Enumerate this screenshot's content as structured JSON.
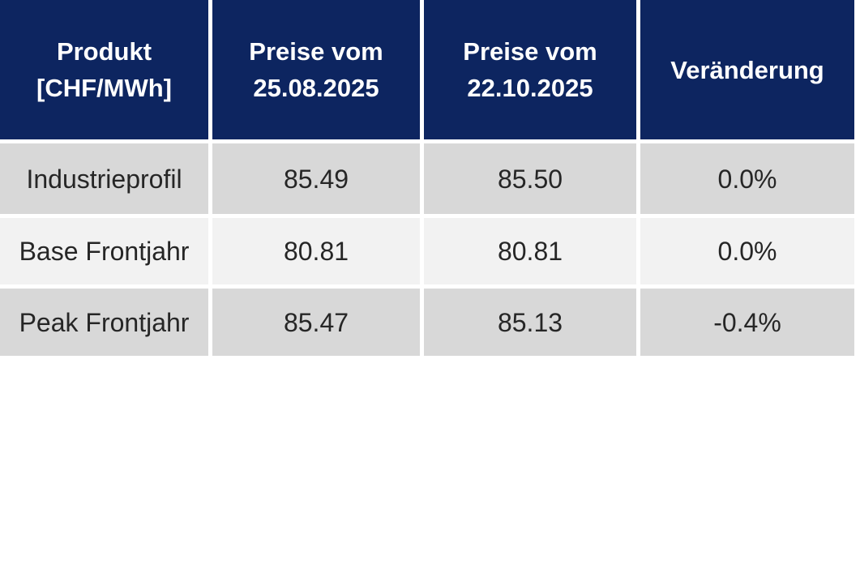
{
  "table": {
    "headers": [
      {
        "label": "Produkt\n[CHF/MWh]"
      },
      {
        "label": "Preise vom\n25.08.2025"
      },
      {
        "label": "Preise vom\n22.10.2025"
      },
      {
        "label": "Veränderung"
      }
    ],
    "rows": [
      {
        "product": "Industrieprofil",
        "price_2025_08_25": "85.49",
        "price_2025_10_22": "85.50",
        "change": "0.0%"
      },
      {
        "product": "Base Frontjahr",
        "price_2025_08_25": "80.81",
        "price_2025_10_22": "80.81",
        "change": "0.0%"
      },
      {
        "product": "Peak Frontjahr",
        "price_2025_08_25": "85.47",
        "price_2025_10_22": "85.13",
        "change": "-0.4%"
      }
    ]
  },
  "colors": {
    "header_bg": "#0d2560",
    "header_text": "#ffffff",
    "row_odd_bg": "#d8d8d8",
    "row_even_bg": "#f2f2f2",
    "cell_text": "#262626",
    "separator": "#ffffff"
  },
  "chart_data": {
    "type": "table",
    "title": "",
    "columns": [
      "Produkt [CHF/MWh]",
      "Preise vom 25.08.2025",
      "Preise vom 22.10.2025",
      "Veränderung"
    ],
    "rows": [
      [
        "Industrieprofil",
        85.49,
        85.5,
        "0.0%"
      ],
      [
        "Base Frontjahr",
        80.81,
        80.81,
        "0.0%"
      ],
      [
        "Peak Frontjahr",
        85.47,
        85.13,
        "-0.4%"
      ]
    ],
    "notes": "Banded-row price comparison table; header row dark navy with white bold text; data rows alternate gray/light-gray; all cells center-aligned; white 5px separators between cells"
  }
}
